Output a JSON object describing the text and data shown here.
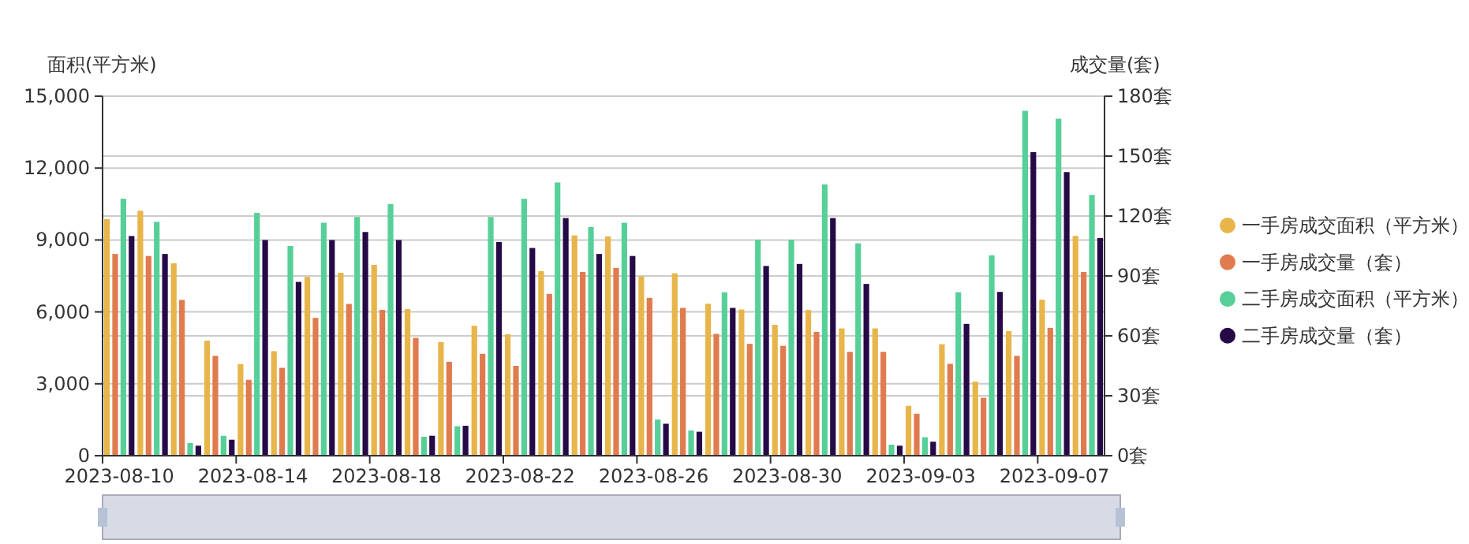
{
  "chart_data": {
    "type": "bar",
    "ylabel": "面积(平方米)",
    "y2label": "成交量(套)",
    "categories": [
      "2023-08-10",
      null,
      null,
      null,
      "2023-08-14",
      null,
      null,
      null,
      "2023-08-18",
      null,
      null,
      null,
      "2023-08-22",
      null,
      null,
      null,
      "2023-08-26",
      null,
      null,
      null,
      "2023-08-30",
      null,
      null,
      null,
      "2023-09-03",
      null,
      null,
      null,
      "2023-09-07",
      null
    ],
    "series": [
      {
        "name": "一手房成交面积（平方米）",
        "color": "#e8b54a",
        "values": [
          9870,
          10220,
          8030,
          4800,
          3820,
          4360,
          7460,
          7630,
          7960,
          6120,
          4740,
          5420,
          5070,
          7700,
          9190,
          9150,
          7480,
          7610,
          6340,
          6100,
          5460,
          6080,
          5310,
          5310,
          2080,
          4650,
          3090,
          5200,
          6510,
          9170
        ]
      },
      {
        "name": "一手房成交量（套）",
        "color": "#e07b4f",
        "values": [
          101,
          100,
          78,
          50,
          38,
          44,
          69,
          76,
          73,
          59,
          47,
          51,
          45,
          81,
          92,
          94,
          79,
          74,
          61,
          56,
          55,
          62,
          52,
          52,
          21,
          46,
          29,
          50,
          64,
          92
        ],
        "axis": "y2"
      },
      {
        "name": "二手房成交面积（平方米）",
        "color": "#57cf98",
        "values": [
          10720,
          9760,
          530,
          830,
          10130,
          8750,
          9720,
          9960,
          10500,
          790,
          1230,
          9960,
          10720,
          11400,
          9540,
          9720,
          1510,
          1050,
          6820,
          9010,
          9010,
          11320,
          8860,
          460,
          770,
          6820,
          8360,
          14390,
          14060,
          10880
        ]
      },
      {
        "name": "二手房成交量（套）",
        "color": "#260a47",
        "values": [
          110,
          101,
          5,
          8,
          108,
          87,
          108,
          112,
          108,
          10,
          15,
          107,
          104,
          119,
          101,
          100,
          16,
          12,
          74,
          95,
          96,
          119,
          86,
          5,
          7,
          66,
          82,
          152,
          142,
          109
        ],
        "axis": "y2"
      }
    ],
    "ylim": [
      0,
      15000
    ],
    "yticks": [
      0,
      {
        "value": 3000,
        "label": "3,000"
      },
      {
        "value": 6000,
        "label": "6,000"
      },
      {
        "value": 9000,
        "label": "9,000"
      },
      {
        "value": 12000,
        "label": "12,000"
      },
      {
        "value": 15000,
        "label": "15,000"
      }
    ],
    "y2lim": [
      0,
      180
    ],
    "y2ticks": [
      {
        "value": 0,
        "label": "0套"
      },
      {
        "value": 30,
        "label": "30套"
      },
      {
        "value": 60,
        "label": "60套"
      },
      {
        "value": 90,
        "label": "90套"
      },
      {
        "value": 120,
        "label": "120套"
      },
      {
        "value": 150,
        "label": "150套"
      },
      {
        "value": 180,
        "label": "180套"
      }
    ],
    "grid": true,
    "legend": "right"
  }
}
